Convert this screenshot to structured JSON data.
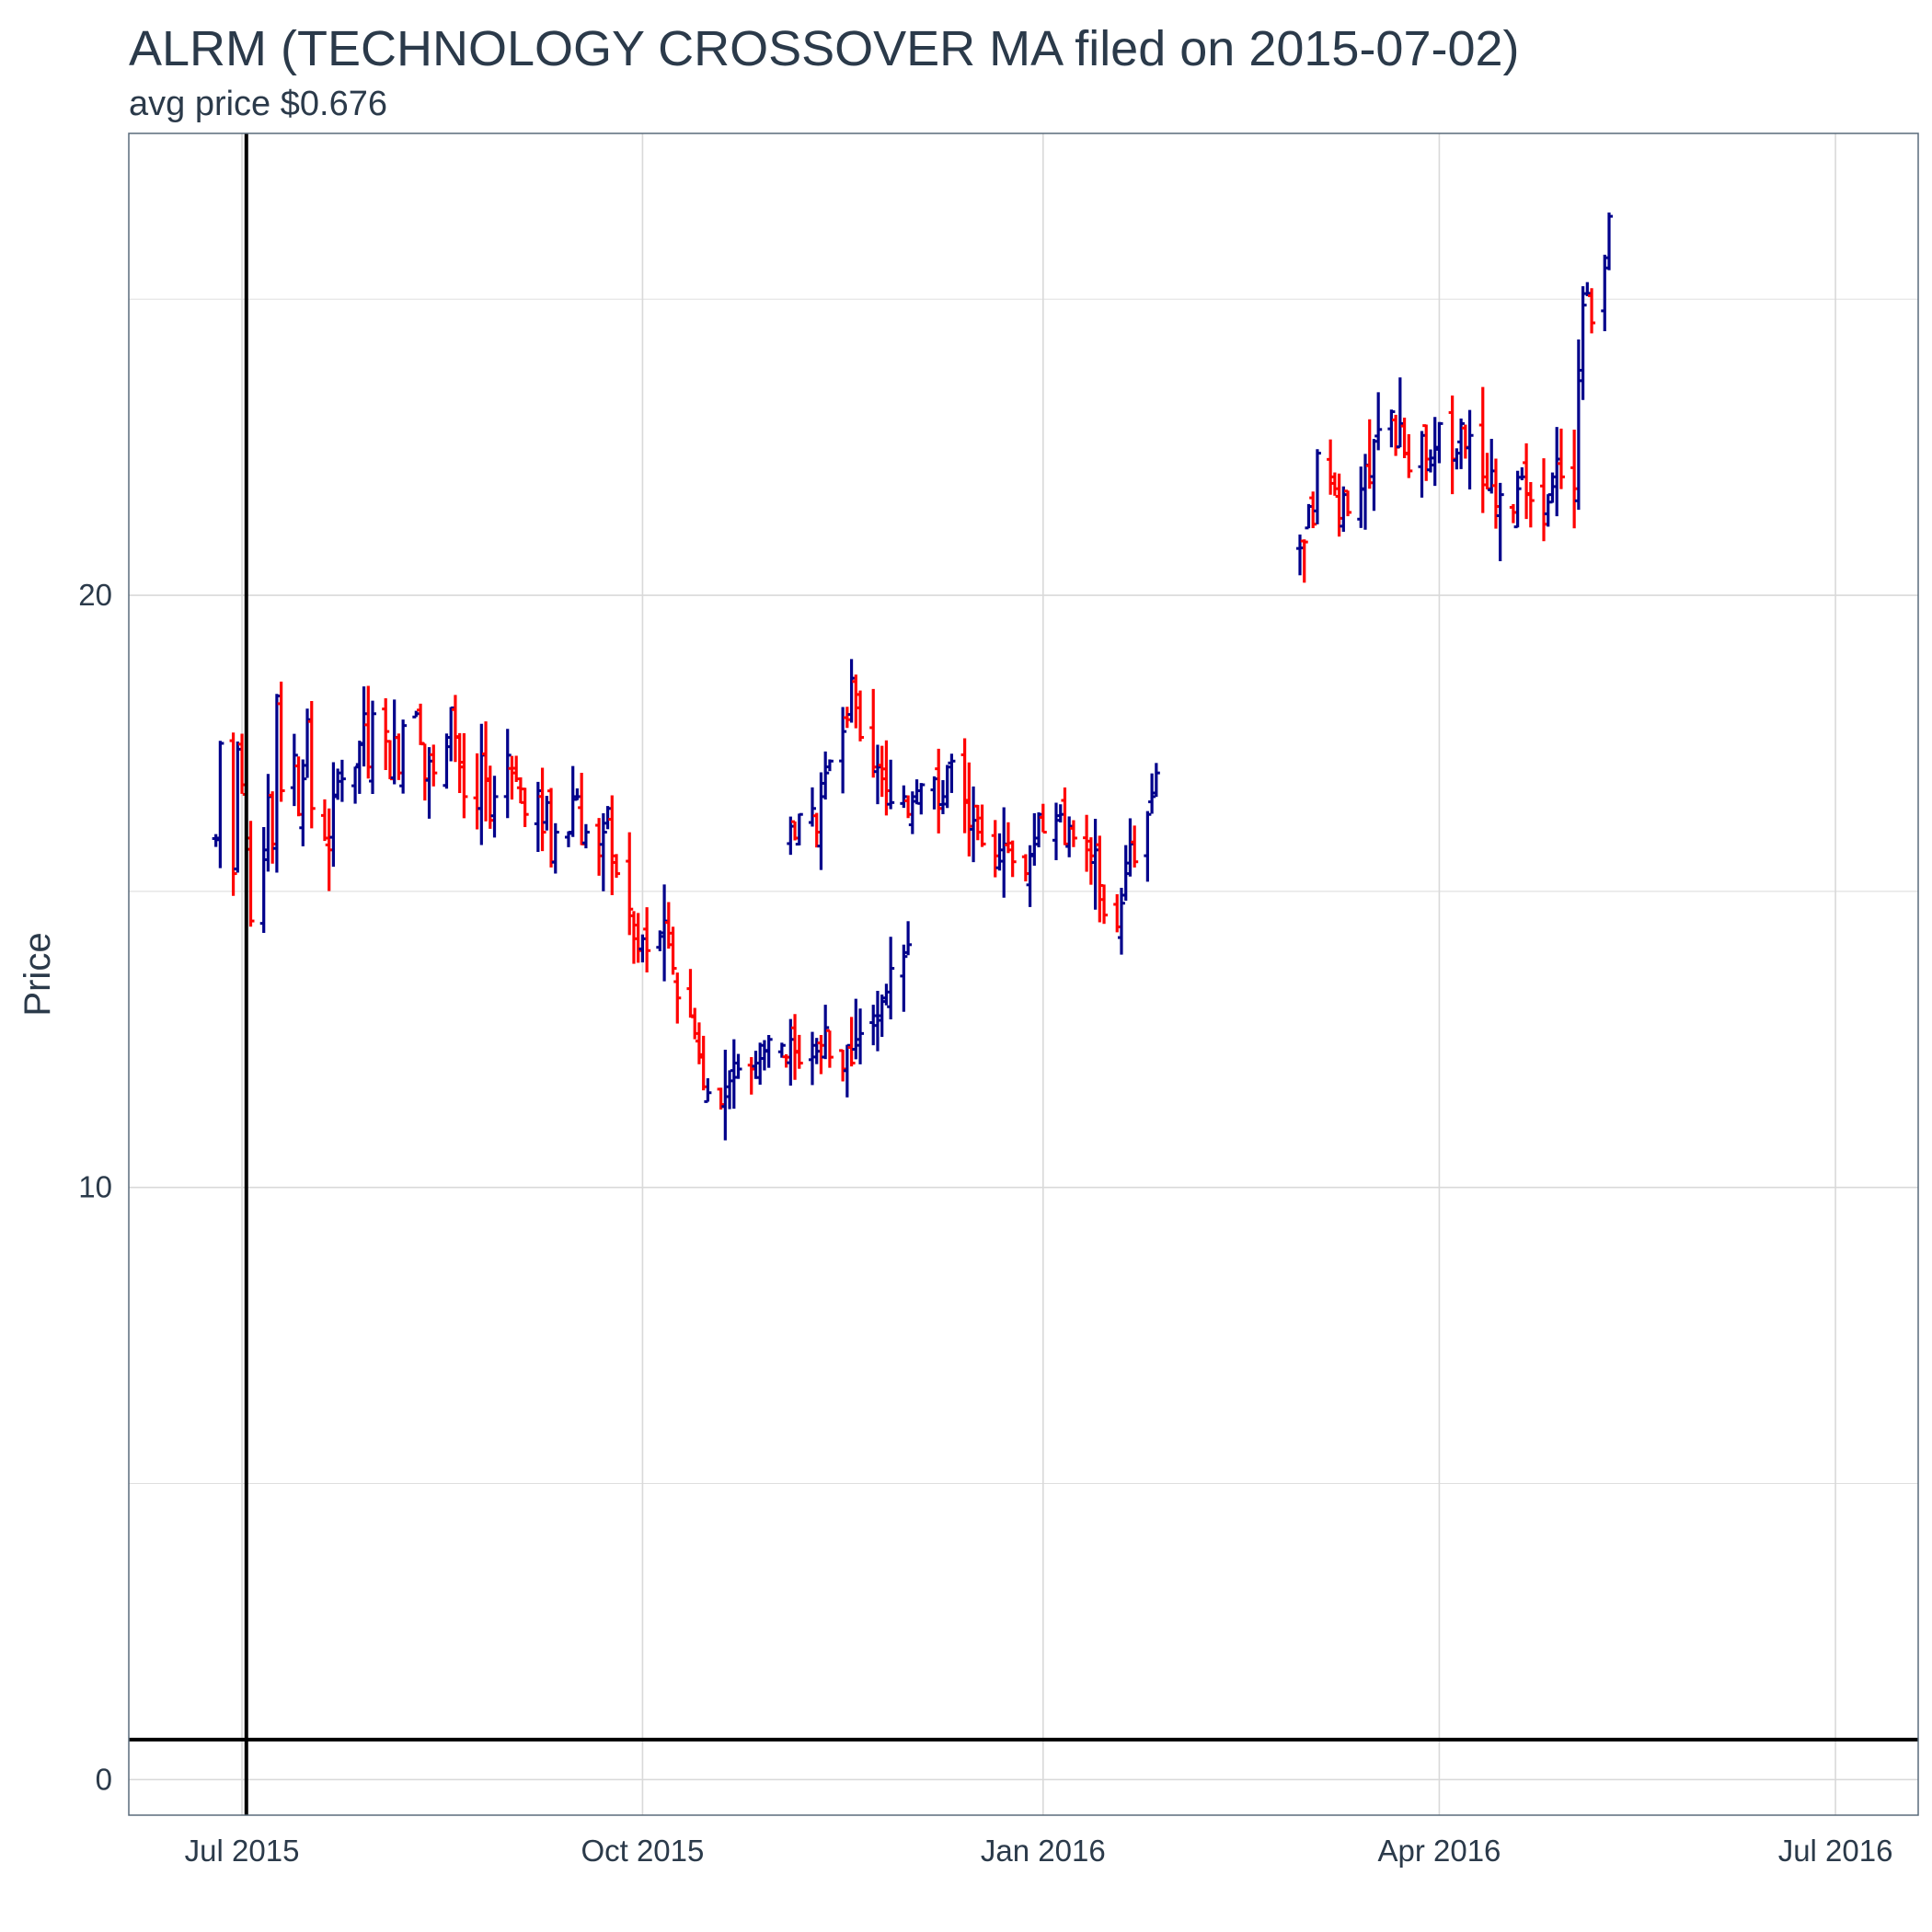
{
  "chart_data": {
    "type": "ohlc",
    "title": "ALRM (TECHNOLOGY CROSSOVER MA filed on 2015-07-02)",
    "subtitle": "avg price $0.676",
    "xlabel": "",
    "ylabel": "Price",
    "x_ticks": [
      {
        "date": "2015-07-01",
        "label": "Jul 2015"
      },
      {
        "date": "2015-10-01",
        "label": "Oct 2015"
      },
      {
        "date": "2016-01-01",
        "label": "Jan 2016"
      },
      {
        "date": "2016-04-01",
        "label": "Apr 2016"
      },
      {
        "date": "2016-07-01",
        "label": "Jul 2016"
      }
    ],
    "y_ticks": [
      {
        "value": 0,
        "label": "0"
      },
      {
        "value": 10,
        "label": "10"
      },
      {
        "value": 20,
        "label": "20"
      }
    ],
    "xlim": [
      "2015-06-05",
      "2016-07-20"
    ],
    "ylim": [
      -0.6,
      27.8
    ],
    "grid": true,
    "filing_date": "2015-07-02",
    "avg_price": 0.676,
    "colors": {
      "up": "#00008b",
      "down": "#ff0000",
      "grid": "#d9d9d9",
      "reference": "#000000",
      "text": "#2b3a4a"
    },
    "segments": [
      {
        "from": "2015-06-25",
        "prices": [
          15.9,
          17.5,
          15.3,
          17.4,
          16.8,
          15.9,
          14.5,
          15.7,
          16.6,
          15.8,
          18.3,
          16.7,
          17.3,
          16.3,
          16.9,
          17.9,
          16.4,
          15.9,
          15.7,
          16.6,
          17.0,
          16.9,
          17.1,
          17.5,
          18.0,
          17.1,
          18.0,
          17.7,
          16.9,
          17.6,
          17.0,
          17.8,
          18.0,
          17.5,
          16.9,
          17.2,
          17.0,
          17.6,
          18.1,
          17.6,
          17.1,
          16.6,
          16.4,
          17.3,
          16.9,
          16.2,
          16.6,
          17.3,
          17.0,
          16.9,
          16.5,
          16.3,
          16.7,
          16.0,
          16.5,
          15.5,
          16.0,
          16.0,
          16.6,
          16.6,
          15.8,
          16.0,
          15.6,
          16.0,
          16.4,
          15.6,
          15.3,
          14.7,
          14.2,
          14.0,
          14.2,
          14.0,
          14.3,
          14.5,
          14.1,
          13.7,
          13.2,
          12.9,
          12.6,
          12.2,
          11.7,
          11.6,
          11.4,
          11.7,
          11.8,
          12.1,
          12.0,
          12.0,
          12.1,
          12.4,
          12.3,
          12.5,
          12.4,
          12.2,
          12.5,
          12.3,
          12.1,
          12.4,
          12.3,
          12.4,
          12.7,
          12.2,
          12.0,
          12.4,
          12.1,
          12.5,
          12.6,
          12.9,
          12.9,
          13.2,
          13.3,
          13.7,
          13.9,
          14.1
        ]
      },
      {
        "from": "2015-11-04",
        "prices": [
          16.1,
          15.9,
          16.3,
          16.4,
          16.0,
          16.6,
          17.0,
          17.2,
          17.7,
          17.9,
          18.6,
          18.1,
          17.6,
          17.1,
          17.1,
          16.9,
          16.7,
          16.5,
          16.6,
          16.3,
          16.6,
          16.7,
          16.8,
          16.9,
          16.4,
          16.6,
          17.1,
          17.2,
          16.5,
          16.1,
          16.2,
          16.0,
          15.8,
          15.6,
          15.7,
          15.8,
          15.7,
          15.5,
          15.3,
          15.6,
          15.9,
          16.3,
          16.0,
          16.2,
          16.3,
          15.8,
          16.1,
          15.9,
          15.7,
          15.6,
          15.7,
          15.1,
          14.6,
          14.4,
          14.8,
          15.3,
          15.8,
          15.5,
          16.3,
          16.6,
          17.0
        ]
      },
      {
        "from": "2016-02-29",
        "prices": [
          20.8,
          20.9,
          21.5,
          21.2,
          22.4,
          22.0,
          21.8,
          21.3,
          21.7,
          21.4,
          21.8,
          22.2,
          21.9,
          22.6,
          22.8,
          23.1,
          22.5,
          22.9,
          22.4,
          22.1,
          22.7,
          22.3,
          22.2,
          22.5,
          22.9,
          22.3,
          22.4,
          22.9,
          22.5,
          22.7,
          22.0,
          21.8,
          22.1,
          21.5,
          21.7,
          21.4,
          21.8,
          22.0,
          21.7,
          21.6,
          21.2,
          21.7,
          22.0,
          22.3,
          22.0,
          21.8,
          23.8,
          24.9,
          25.1,
          24.6,
          25.7,
          26.4
        ]
      }
    ]
  }
}
